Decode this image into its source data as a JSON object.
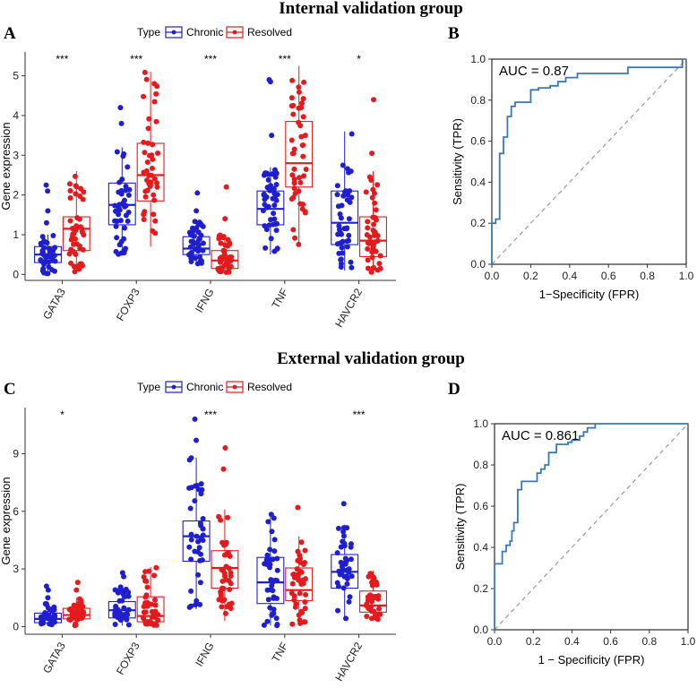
{
  "titles": {
    "internal": "Internal validation group",
    "external": "External validation group"
  },
  "panels": {
    "a": "A",
    "b": "B",
    "c": "C",
    "d": "D"
  },
  "legend": {
    "type_label": "Type",
    "chronic": "Chronic",
    "resolved": "Resolved"
  },
  "colors": {
    "chronic": "#1f1fcf",
    "resolved": "#e41a1c",
    "roc_line": "#3a78b5",
    "diagonal": "#999999"
  },
  "chart_data": [
    {
      "id": "A",
      "type": "box",
      "title": "Internal validation group",
      "ylabel": "Gene expression",
      "ylim": [
        -0.15,
        5.6
      ],
      "yticks": [
        0,
        1,
        2,
        3,
        4,
        5
      ],
      "categories": [
        "GATA3",
        "FOXP3",
        "IFNG",
        "TNF",
        "HAVCR2"
      ],
      "significance": [
        "***",
        "***",
        "***",
        "***",
        "*"
      ],
      "series": [
        {
          "name": "Chronic",
          "boxes": [
            {
              "min": 0.0,
              "q1": 0.3,
              "median": 0.5,
              "q3": 0.7,
              "max": 1.0,
              "outliers": [
                1.3,
                1.6,
                2.1,
                2.25
              ],
              "n": 45
            },
            {
              "min": 0.5,
              "q1": 1.25,
              "median": 1.75,
              "q3": 2.3,
              "max": 3.2,
              "outliers": [
                3.8,
                4.2
              ],
              "n": 45
            },
            {
              "min": 0.25,
              "q1": 0.5,
              "median": 0.65,
              "q3": 0.95,
              "max": 1.35,
              "outliers": [
                1.6,
                2.05
              ],
              "n": 45
            },
            {
              "min": 0.5,
              "q1": 1.25,
              "median": 1.65,
              "q3": 2.1,
              "max": 2.7,
              "outliers": [
                3.5,
                4.85,
                4.9
              ],
              "n": 45
            },
            {
              "min": 0.1,
              "q1": 0.75,
              "median": 1.3,
              "q3": 2.1,
              "max": 3.6,
              "outliers": [],
              "n": 45
            }
          ]
        },
        {
          "name": "Resolved",
          "boxes": [
            {
              "min": 0.05,
              "q1": 0.6,
              "median": 1.15,
              "q3": 1.45,
              "max": 2.6,
              "outliers": [],
              "n": 45
            },
            {
              "min": 0.7,
              "q1": 1.85,
              "median": 2.5,
              "q3": 3.3,
              "max": 5.1,
              "outliers": [],
              "n": 45
            },
            {
              "min": 0.05,
              "q1": 0.15,
              "median": 0.35,
              "q3": 0.6,
              "max": 1.0,
              "outliers": [
                1.4,
                2.2
              ],
              "n": 45
            },
            {
              "min": 0.75,
              "q1": 2.2,
              "median": 2.8,
              "q3": 3.85,
              "max": 5.25,
              "outliers": [],
              "n": 45
            },
            {
              "min": 0.0,
              "q1": 0.45,
              "median": 0.85,
              "q3": 1.45,
              "max": 2.6,
              "outliers": [
                3.05,
                4.4
              ],
              "n": 45
            }
          ]
        }
      ]
    },
    {
      "id": "B",
      "type": "line",
      "ylabel": "Sensitivity (TPR)",
      "xlabel": "1−Specificity (FPR)",
      "auc_label": "AUC = 0.87",
      "xlim": [
        0,
        1
      ],
      "ylim": [
        0,
        1
      ],
      "ticks": [
        "0.0",
        "0.2",
        "0.4",
        "0.6",
        "0.8",
        "1.0"
      ],
      "x": [
        0.0,
        0.0,
        0.02,
        0.02,
        0.04,
        0.04,
        0.06,
        0.06,
        0.08,
        0.08,
        0.1,
        0.1,
        0.12,
        0.12,
        0.14,
        0.14,
        0.2,
        0.2,
        0.24,
        0.24,
        0.3,
        0.3,
        0.34,
        0.34,
        0.38,
        0.38,
        0.44,
        0.44,
        0.7,
        0.7,
        0.98,
        0.98
      ],
      "y": [
        0.0,
        0.2,
        0.2,
        0.22,
        0.22,
        0.54,
        0.54,
        0.62,
        0.62,
        0.72,
        0.72,
        0.77,
        0.77,
        0.79,
        0.79,
        0.79,
        0.79,
        0.85,
        0.85,
        0.86,
        0.86,
        0.87,
        0.87,
        0.89,
        0.89,
        0.91,
        0.91,
        0.93,
        0.93,
        0.96,
        0.96,
        1.0
      ]
    },
    {
      "id": "C",
      "type": "box",
      "title": "External validation group",
      "ylabel": "Gene expression",
      "ylim": [
        -0.4,
        11.4
      ],
      "yticks": [
        0,
        3,
        6,
        9
      ],
      "categories": [
        "GATA3",
        "FOXP3",
        "IFNG",
        "TNF",
        "HAVCR2"
      ],
      "significance": [
        "*",
        "",
        "***",
        "",
        "***"
      ],
      "series": [
        {
          "name": "Chronic",
          "boxes": [
            {
              "min": 0.05,
              "q1": 0.2,
              "median": 0.4,
              "q3": 0.7,
              "max": 1.2,
              "outliers": [
                1.5,
                1.9,
                2.1
              ],
              "n": 40
            },
            {
              "min": 0.05,
              "q1": 0.45,
              "median": 0.85,
              "q3": 1.3,
              "max": 2.1,
              "outliers": [
                2.6,
                2.8
              ],
              "n": 40
            },
            {
              "min": 0.9,
              "q1": 3.4,
              "median": 4.7,
              "q3": 5.5,
              "max": 8.8,
              "outliers": [
                9.7,
                10.8
              ],
              "n": 40
            },
            {
              "min": 0.05,
              "q1": 1.2,
              "median": 2.3,
              "q3": 3.6,
              "max": 5.9,
              "outliers": [],
              "n": 40
            },
            {
              "min": 0.3,
              "q1": 2.0,
              "median": 2.85,
              "q3": 3.75,
              "max": 5.3,
              "outliers": [
                6.4
              ],
              "n": 40
            }
          ]
        },
        {
          "name": "Resolved",
          "boxes": [
            {
              "min": 0.05,
              "q1": 0.4,
              "median": 0.6,
              "q3": 0.95,
              "max": 1.5,
              "outliers": [
                1.9,
                2.3
              ],
              "n": 40
            },
            {
              "min": 0.05,
              "q1": 0.25,
              "median": 0.55,
              "q3": 1.55,
              "max": 3.1,
              "outliers": [],
              "n": 40
            },
            {
              "min": 0.3,
              "q1": 2.0,
              "median": 3.05,
              "q3": 3.95,
              "max": 6.1,
              "outliers": [
                8.2,
                9.3
              ],
              "n": 40
            },
            {
              "min": 0.05,
              "q1": 1.35,
              "median": 1.9,
              "q3": 3.05,
              "max": 4.7,
              "outliers": [
                6.2
              ],
              "n": 40
            },
            {
              "min": 0.35,
              "q1": 0.75,
              "median": 1.1,
              "q3": 1.85,
              "max": 2.9,
              "outliers": [],
              "n": 40
            }
          ]
        }
      ]
    },
    {
      "id": "D",
      "type": "line",
      "ylabel": "Sensitivity (TPR)",
      "xlabel": "1 − Specificity (FPR)",
      "auc_label": "AUC = 0.861",
      "xlim": [
        0,
        1
      ],
      "ylim": [
        0,
        1
      ],
      "ticks": [
        "0.0",
        "0.2",
        "0.4",
        "0.6",
        "0.8",
        "1.0"
      ],
      "x": [
        0.0,
        0.0,
        0.04,
        0.04,
        0.06,
        0.06,
        0.08,
        0.08,
        0.09,
        0.09,
        0.1,
        0.1,
        0.12,
        0.12,
        0.14,
        0.14,
        0.22,
        0.22,
        0.24,
        0.24,
        0.26,
        0.26,
        0.28,
        0.28,
        0.32,
        0.32,
        0.38,
        0.38,
        0.4,
        0.4,
        0.44,
        0.44,
        0.46,
        0.46,
        0.48,
        0.48,
        0.52,
        0.52,
        1.0
      ],
      "y": [
        0.0,
        0.32,
        0.32,
        0.38,
        0.38,
        0.41,
        0.41,
        0.43,
        0.43,
        0.48,
        0.48,
        0.52,
        0.52,
        0.68,
        0.68,
        0.72,
        0.72,
        0.76,
        0.76,
        0.78,
        0.78,
        0.8,
        0.8,
        0.86,
        0.86,
        0.9,
        0.9,
        0.91,
        0.91,
        0.92,
        0.92,
        0.94,
        0.94,
        0.96,
        0.96,
        0.98,
        0.98,
        1.0,
        1.0
      ]
    }
  ]
}
